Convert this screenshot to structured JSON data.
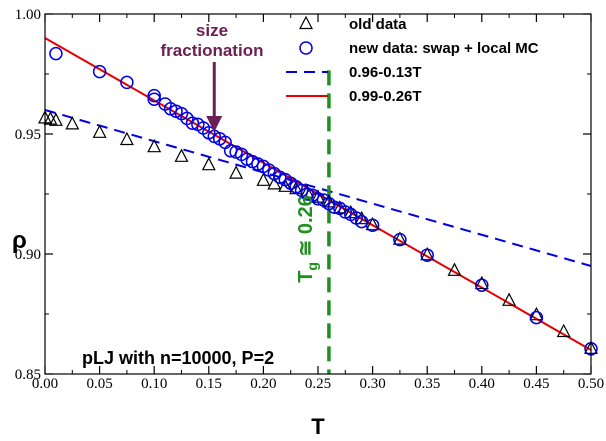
{
  "chart_data": {
    "type": "scatter",
    "xlabel": "T",
    "ylabel": "ρ",
    "xlim": [
      0.0,
      0.5
    ],
    "ylim": [
      0.85,
      1.0
    ],
    "x_ticks": [
      "0.00",
      "0.05",
      "0.10",
      "0.15",
      "0.20",
      "0.25",
      "0.30",
      "0.35",
      "0.40",
      "0.45",
      "0.50"
    ],
    "y_ticks": [
      "0.85",
      "0.90",
      "0.95",
      "1.00"
    ],
    "grid": false,
    "legend_position": "top-right",
    "series": [
      {
        "name": "old data",
        "marker": "triangle",
        "color": "#000000",
        "x": [
          0.0,
          0.005,
          0.01,
          0.025,
          0.05,
          0.075,
          0.1,
          0.125,
          0.15,
          0.175,
          0.2,
          0.21,
          0.22,
          0.23,
          0.24,
          0.25,
          0.26,
          0.27,
          0.28,
          0.29,
          0.3,
          0.325,
          0.35,
          0.375,
          0.4,
          0.425,
          0.45,
          0.475,
          0.5
        ],
        "y": [
          0.9565,
          0.956,
          0.9555,
          0.954,
          0.9505,
          0.9475,
          0.9445,
          0.9405,
          0.937,
          0.9335,
          0.9305,
          0.929,
          0.928,
          0.927,
          0.9255,
          0.9235,
          0.9215,
          0.919,
          0.917,
          0.9145,
          0.912,
          0.906,
          0.8995,
          0.893,
          0.8875,
          0.8805,
          0.8745,
          0.8675,
          0.8605
        ]
      },
      {
        "name": "new data: swap + local MC",
        "marker": "circle",
        "color": "#0000e6",
        "x": [
          0.01,
          0.05,
          0.075,
          0.1,
          0.1,
          0.11,
          0.115,
          0.12,
          0.125,
          0.13,
          0.135,
          0.14,
          0.145,
          0.15,
          0.155,
          0.16,
          0.165,
          0.17,
          0.175,
          0.18,
          0.185,
          0.19,
          0.195,
          0.2,
          0.205,
          0.21,
          0.215,
          0.22,
          0.225,
          0.23,
          0.235,
          0.24,
          0.245,
          0.25,
          0.255,
          0.26,
          0.265,
          0.27,
          0.275,
          0.28,
          0.285,
          0.29,
          0.3,
          0.325,
          0.35,
          0.4,
          0.45,
          0.5
        ],
        "y": [
          0.9835,
          0.976,
          0.9715,
          0.966,
          0.9645,
          0.9625,
          0.9605,
          0.9595,
          0.9585,
          0.9565,
          0.9545,
          0.954,
          0.9525,
          0.9505,
          0.949,
          0.948,
          0.9465,
          0.943,
          0.9425,
          0.9415,
          0.9395,
          0.9385,
          0.9375,
          0.9365,
          0.935,
          0.9335,
          0.932,
          0.931,
          0.9295,
          0.928,
          0.9265,
          0.925,
          0.9245,
          0.923,
          0.9225,
          0.921,
          0.9195,
          0.919,
          0.9175,
          0.9165,
          0.915,
          0.9135,
          0.912,
          0.906,
          0.8995,
          0.887,
          0.8735,
          0.8605
        ]
      },
      {
        "name": "0.96-0.13T",
        "style": "dashed",
        "color": "#0000e6",
        "x": [
          0.0,
          0.5
        ],
        "y": [
          0.96,
          0.895
        ]
      },
      {
        "name": "0.99-0.26T",
        "style": "solid",
        "color": "#e60000",
        "x": [
          0.0,
          0.5
        ],
        "y": [
          0.99,
          0.86
        ]
      }
    ],
    "annotations": {
      "size_line1": "size",
      "size_line2": "fractionation",
      "arrow_target": {
        "x": 0.155,
        "y": 0.95
      },
      "tg_main": "T",
      "tg_sub": "g",
      "tg_rest": " ≅ 0.26",
      "tg_x": 0.26,
      "bottom_text": "pLJ with n=10000, P=2"
    },
    "colors": {
      "annotation_purple": "#6b1f52",
      "tg_green": "#1f8f1f"
    }
  }
}
